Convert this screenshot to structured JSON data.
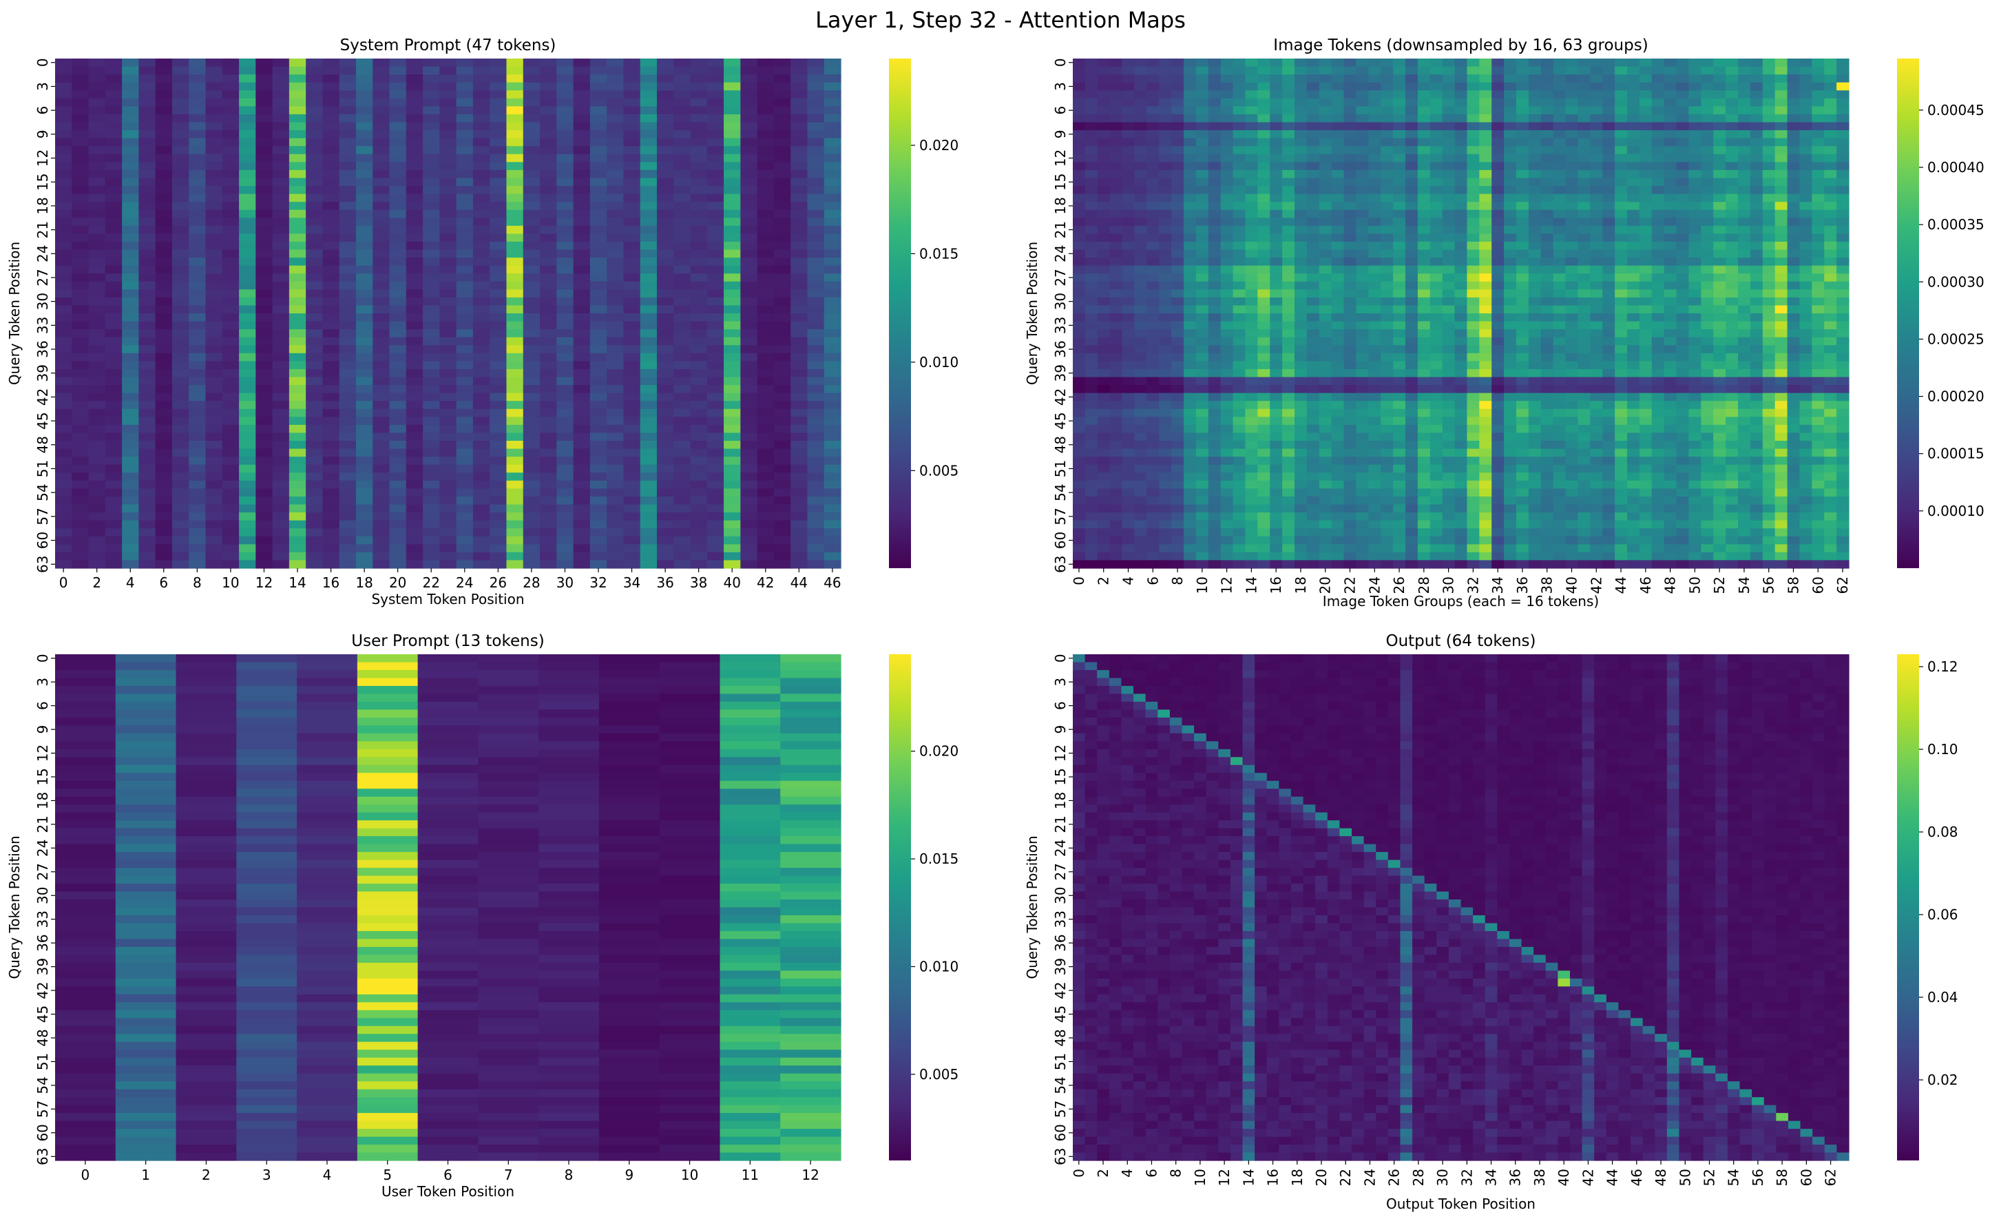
{
  "figure_title": "Layer 1, Step 32 - Attention Maps",
  "colormap": [
    "#440154",
    "#482878",
    "#3e4989",
    "#31688e",
    "#26828e",
    "#1f9e89",
    "#35b779",
    "#6ece58",
    "#b5de2b",
    "#fde725"
  ],
  "chart_data": [
    {
      "type": "heatmap",
      "title": "System Prompt (47 tokens)",
      "xlabel": "System Token Position",
      "ylabel": "Query Token Position",
      "n_cols": 47,
      "n_rows": 64,
      "x_tick_step": 2,
      "y_tick_step": 3,
      "vmin": 0.0005,
      "vmax": 0.024,
      "colorbar_ticks": [
        0.005,
        0.01,
        0.015,
        0.02
      ],
      "colorbar_labels": [
        "0.005",
        "0.010",
        "0.015",
        "0.020"
      ],
      "col_means": [
        0.003,
        0.0025,
        0.0028,
        0.0027,
        0.009,
        0.0035,
        0.002,
        0.004,
        0.006,
        0.0035,
        0.003,
        0.014,
        0.002,
        0.003,
        0.017,
        0.004,
        0.003,
        0.005,
        0.008,
        0.004,
        0.006,
        0.003,
        0.005,
        0.004,
        0.006,
        0.004,
        0.005,
        0.019,
        0.005,
        0.004,
        0.006,
        0.003,
        0.006,
        0.005,
        0.004,
        0.011,
        0.004,
        0.004,
        0.004,
        0.004,
        0.016,
        0.003,
        0.002,
        0.002,
        0.004,
        0.006,
        0.008
      ],
      "hotspots": [
        {
          "row": 6,
          "col": 27,
          "value": 0.024
        },
        {
          "row": 27,
          "col": 27,
          "value": 0.021
        },
        {
          "row": 63,
          "col": 14,
          "value": 0.02
        },
        {
          "row": 63,
          "col": 27,
          "value": 0.02
        },
        {
          "row": 63,
          "col": 40,
          "value": 0.021
        }
      ]
    },
    {
      "type": "heatmap",
      "title": "Image Tokens (downsampled by 16, 63 groups)",
      "xlabel": "Image Token Groups (each = 16 tokens)",
      "ylabel": "Query Token Position",
      "n_cols": 63,
      "n_rows": 64,
      "x_tick_step": 2,
      "y_tick_step": 3,
      "vmin": 5e-05,
      "vmax": 0.000495,
      "colorbar_ticks": [
        0.0001,
        0.00015,
        0.0002,
        0.00025,
        0.0003,
        0.00035,
        0.0004,
        0.00045
      ],
      "colorbar_labels": [
        "0.00010",
        "0.00015",
        "0.00020",
        "0.00025",
        "0.00030",
        "0.00035",
        "0.00040",
        "0.00045"
      ],
      "col_means": [
        0.00012,
        0.00013,
        0.00012,
        0.00012,
        0.00013,
        0.00014,
        0.00014,
        0.00015,
        0.00016,
        0.00024,
        0.00026,
        0.00021,
        0.00025,
        0.00028,
        0.00031,
        0.00034,
        0.00027,
        0.00032,
        0.00026,
        0.00024,
        0.00026,
        0.00025,
        0.00022,
        0.00024,
        0.00025,
        0.00026,
        0.00028,
        0.00022,
        0.00031,
        0.00029,
        0.00027,
        0.00025,
        0.00036,
        0.00041,
        0.00018,
        0.00026,
        0.00029,
        0.00026,
        0.00024,
        0.00025,
        0.00025,
        0.00026,
        0.00025,
        0.00023,
        0.00031,
        0.00028,
        0.00029,
        0.00026,
        0.00025,
        0.00024,
        0.00027,
        0.00029,
        0.00032,
        0.00031,
        0.00029,
        0.00027,
        0.00034,
        0.00039,
        0.00025,
        0.00027,
        0.00031,
        0.00033,
        0.00029
      ],
      "row_means": [
        0.9,
        0.95,
        0.85,
        0.8,
        0.9,
        0.95,
        1.0,
        0.9,
        0.55,
        0.9,
        0.85,
        0.95,
        0.9,
        0.8,
        0.95,
        0.9,
        0.85,
        1.0,
        1.05,
        0.9,
        0.85,
        0.95,
        0.9,
        1.0,
        0.95,
        0.9,
        1.15,
        1.2,
        1.1,
        1.2,
        1.05,
        1.15,
        1.0,
        1.1,
        1.05,
        1.0,
        0.95,
        1.0,
        1.05,
        1.1,
        0.5,
        0.45,
        1.0,
        1.15,
        1.2,
        1.15,
        1.1,
        1.05,
        1.0,
        1.1,
        0.95,
        1.0,
        1.05,
        1.1,
        1.0,
        0.95,
        0.9,
        1.0,
        1.05,
        0.95,
        0.9,
        1.0,
        0.95,
        0.35
      ],
      "hotspots": [
        {
          "row": 3,
          "col": 62,
          "value": 0.000495
        }
      ]
    },
    {
      "type": "heatmap",
      "title": "User Prompt (13 tokens)",
      "xlabel": "User Token Position",
      "ylabel": "Query Token Position",
      "n_cols": 13,
      "n_rows": 64,
      "x_tick_step": 1,
      "y_tick_step": 3,
      "vmin": 0.001,
      "vmax": 0.0245,
      "colorbar_ticks": [
        0.005,
        0.01,
        0.015,
        0.02
      ],
      "colorbar_labels": [
        "0.005",
        "0.010",
        "0.015",
        "0.020"
      ],
      "col_means": [
        0.0025,
        0.009,
        0.003,
        0.0065,
        0.004,
        0.02,
        0.003,
        0.003,
        0.003,
        0.002,
        0.002,
        0.0145,
        0.0155
      ],
      "hotspots": [
        {
          "row": 15,
          "col": 5,
          "value": 0.0245
        },
        {
          "row": 16,
          "col": 5,
          "value": 0.0245
        },
        {
          "row": 34,
          "col": 5,
          "value": 0.0235
        },
        {
          "row": 41,
          "col": 5,
          "value": 0.0245
        },
        {
          "row": 42,
          "col": 5,
          "value": 0.0245
        },
        {
          "row": 49,
          "col": 5,
          "value": 0.0235
        }
      ]
    },
    {
      "type": "heatmap",
      "title": "Output (64 tokens)",
      "xlabel": "Output Token Position",
      "ylabel": "Query Token Position",
      "n_cols": 64,
      "n_rows": 64,
      "x_tick_step": 2,
      "y_tick_step": 3,
      "vmin": 0.0005,
      "vmax": 0.123,
      "colorbar_ticks": [
        0.02,
        0.04,
        0.06,
        0.08,
        0.1,
        0.12
      ],
      "colorbar_labels": [
        "0.02",
        "0.04",
        "0.06",
        "0.08",
        "0.10",
        "0.12"
      ],
      "col_means": [
        0.01,
        0.008,
        0.008,
        0.008,
        0.008,
        0.008,
        0.008,
        0.008,
        0.008,
        0.008,
        0.008,
        0.008,
        0.009,
        0.01,
        0.035,
        0.01,
        0.009,
        0.009,
        0.009,
        0.009,
        0.01,
        0.009,
        0.01,
        0.009,
        0.01,
        0.009,
        0.01,
        0.035,
        0.01,
        0.009,
        0.009,
        0.01,
        0.009,
        0.01,
        0.015,
        0.01,
        0.009,
        0.009,
        0.009,
        0.01,
        0.01,
        0.012,
        0.025,
        0.01,
        0.009,
        0.009,
        0.01,
        0.01,
        0.012,
        0.038,
        0.01,
        0.01,
        0.012,
        0.02,
        0.01,
        0.01,
        0.012,
        0.011,
        0.01,
        0.01,
        0.011,
        0.012,
        0.011,
        0.01
      ],
      "diagonal_value": 0.05,
      "hotspots": [
        {
          "row": 41,
          "col": 40,
          "value": 0.105
        },
        {
          "row": 40,
          "col": 40,
          "value": 0.085
        },
        {
          "row": 58,
          "col": 58,
          "value": 0.095
        },
        {
          "row": 56,
          "col": 56,
          "value": 0.07
        },
        {
          "row": 13,
          "col": 13,
          "value": 0.075
        },
        {
          "row": 7,
          "col": 7,
          "value": 0.07
        },
        {
          "row": 22,
          "col": 22,
          "value": 0.07
        },
        {
          "row": 26,
          "col": 26,
          "value": 0.065
        }
      ]
    }
  ]
}
